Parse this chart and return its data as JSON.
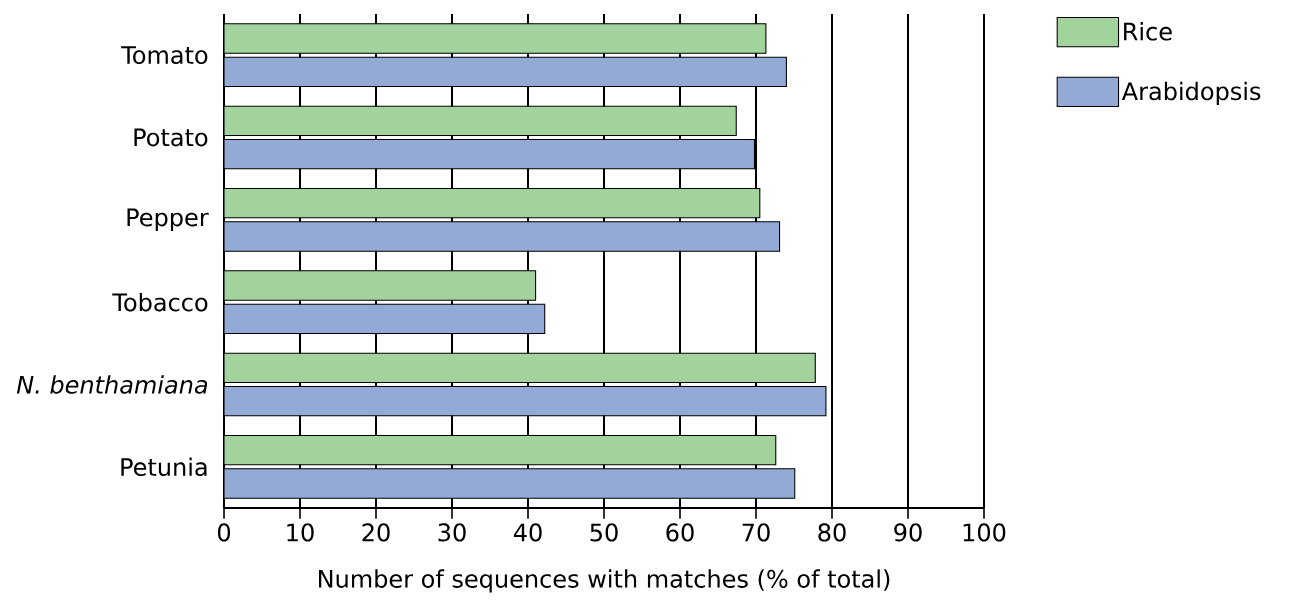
{
  "chart_data": {
    "type": "bar",
    "orientation": "horizontal",
    "xlabel": "Number of sequences with matches (% of total)",
    "categories": [
      "Tomato",
      "Potato",
      "Pepper",
      "Tobacco",
      "*N. benthamiana*",
      "Petunia"
    ],
    "series": [
      {
        "name": "Arabidopsis",
        "color": "#93a9d6",
        "values": [
          74.0,
          69.8,
          73.1,
          42.2,
          79.2,
          75.1
        ]
      },
      {
        "name": "Rice",
        "color": "#a2d39c",
        "values": [
          71.3,
          67.4,
          70.5,
          41.0,
          77.8,
          72.6
        ]
      }
    ],
    "xlim": [
      0,
      100
    ],
    "xticks": [
      0,
      10,
      20,
      30,
      40,
      50,
      60,
      70,
      80,
      90,
      100
    ],
    "grid": "x",
    "legend": "top right"
  }
}
